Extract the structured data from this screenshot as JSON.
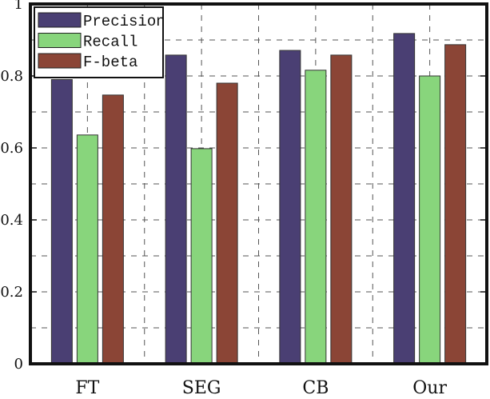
{
  "chart_data": {
    "type": "bar",
    "title": "",
    "xlabel": "",
    "ylabel": "",
    "categories": [
      "FT",
      "SEG",
      "CB",
      "Our"
    ],
    "series": [
      {
        "name": "Precision",
        "color": "#4a3f73",
        "values": [
          0.79,
          0.858,
          0.871,
          0.918
        ]
      },
      {
        "name": "Recall",
        "color": "#88d57c",
        "values": [
          0.636,
          0.598,
          0.816,
          0.8
        ]
      },
      {
        "name": "F-beta",
        "color": "#8b4536",
        "values": [
          0.747,
          0.78,
          0.858,
          0.887
        ]
      }
    ],
    "ylim": [
      0,
      1
    ],
    "yticks": [
      {
        "value": 0,
        "label": "0"
      },
      {
        "value": 0.2,
        "label": "0.2"
      },
      {
        "value": 0.4,
        "label": "0.4"
      },
      {
        "value": 0.6,
        "label": "0.6"
      },
      {
        "value": 0.8,
        "label": "0.8"
      },
      {
        "value": 1,
        "label": "1"
      }
    ],
    "grid": true,
    "legend_position": "top-left"
  }
}
